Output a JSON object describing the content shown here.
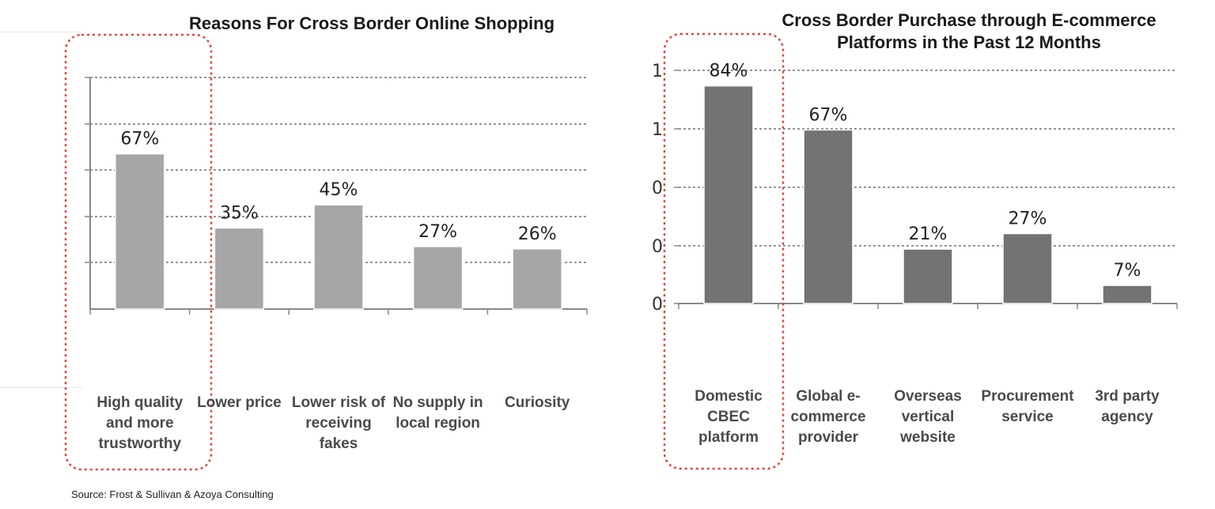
{
  "chart_data": [
    {
      "type": "bar",
      "title": "Reasons For Cross Border Online Shopping",
      "categories": [
        "High quality and more trustworthy",
        "Lower price",
        "Lower risk of receiving fakes",
        "No supply in local region",
        "Curiosity"
      ],
      "values": [
        67,
        35,
        45,
        27,
        26
      ],
      "data_labels": [
        "67%",
        "35%",
        "45%",
        "27%",
        "26%"
      ],
      "ylim": [
        0,
        100
      ],
      "grid": true,
      "highlighted_category": "High quality and more trustworthy",
      "bar_color": "#a6a6a6"
    },
    {
      "type": "bar",
      "title": "Cross Border Purchase through E-commerce Platforms in the Past 12 Months",
      "categories": [
        "Domestic CBEC platform",
        "Global e-commerce provider",
        "Overseas vertical website",
        "Procurement service",
        "3rd party agency"
      ],
      "values": [
        84,
        67,
        21,
        27,
        7
      ],
      "data_labels": [
        "84%",
        "67%",
        "21%",
        "27%",
        "7%"
      ],
      "yticks": [
        "0",
        "0",
        "0",
        "1",
        "1"
      ],
      "ylim": [
        0,
        90
      ],
      "grid": true,
      "highlighted_category": "Domestic CBEC platform",
      "bar_color": "#737373"
    }
  ],
  "source": "Source: Frost & Sullivan & Azoya Consulting",
  "highlight_color": "#e0473c"
}
